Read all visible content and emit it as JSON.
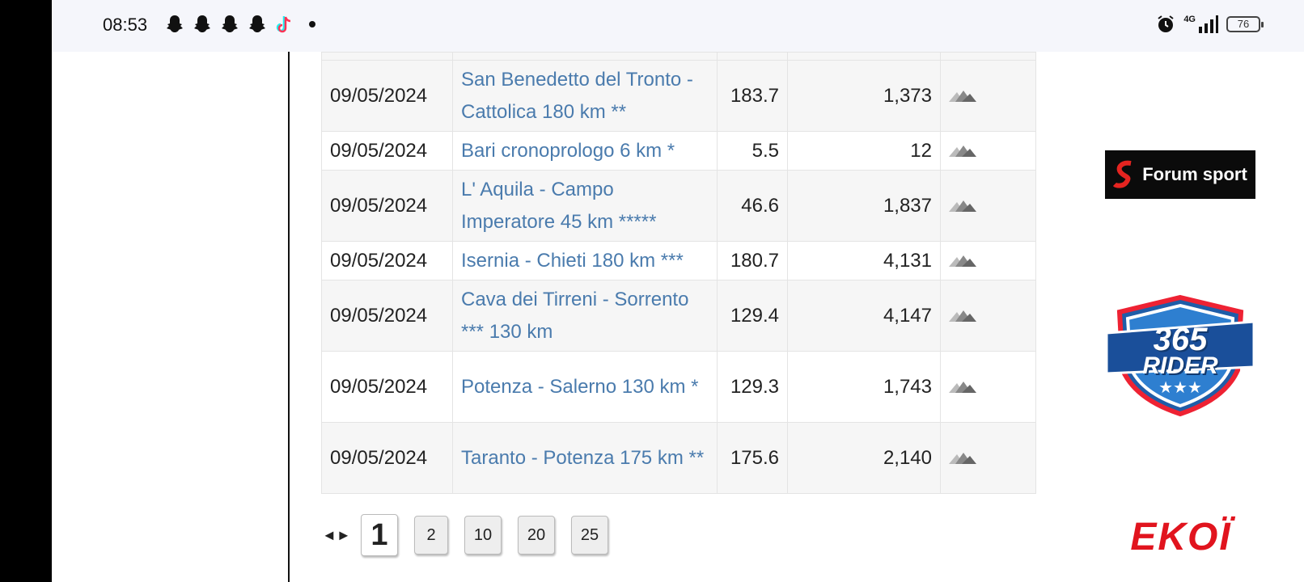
{
  "status_bar": {
    "time": "08:53",
    "network": "4G",
    "battery": "76"
  },
  "stages": {
    "rows": [
      {
        "date": "09/05/2024",
        "name": "San Benedetto del Tronto - Cattolica 180 km **",
        "distance": "183.7",
        "elevation": "1,373"
      },
      {
        "date": "09/05/2024",
        "name": "Bari cronoprologo 6 km *",
        "distance": "5.5",
        "elevation": "12"
      },
      {
        "date": "09/05/2024",
        "name": "L' Aquila - Campo Imperatore 45 km *****",
        "distance": "46.6",
        "elevation": "1,837"
      },
      {
        "date": "09/05/2024",
        "name": "Isernia - Chieti 180 km ***",
        "distance": "180.7",
        "elevation": "4,131"
      },
      {
        "date": "09/05/2024",
        "name": "Cava dei Tirreni - Sorrento *** 130 km",
        "distance": "129.4",
        "elevation": "4,147"
      },
      {
        "date": "09/05/2024",
        "name": "Potenza - Salerno 130 km *",
        "distance": "129.3",
        "elevation": "1,743"
      },
      {
        "date": "09/05/2024",
        "name": "Taranto - Potenza 175 km **",
        "distance": "175.6",
        "elevation": "2,140"
      }
    ]
  },
  "pagination": {
    "arrows": "◄►",
    "current": "1",
    "pages": [
      "2",
      "10",
      "20",
      "25"
    ]
  },
  "ads": {
    "forum_sport": "Forum sport",
    "rider_top": "365",
    "rider_bottom": "RIDER",
    "ekoi": "EKOÏ"
  }
}
